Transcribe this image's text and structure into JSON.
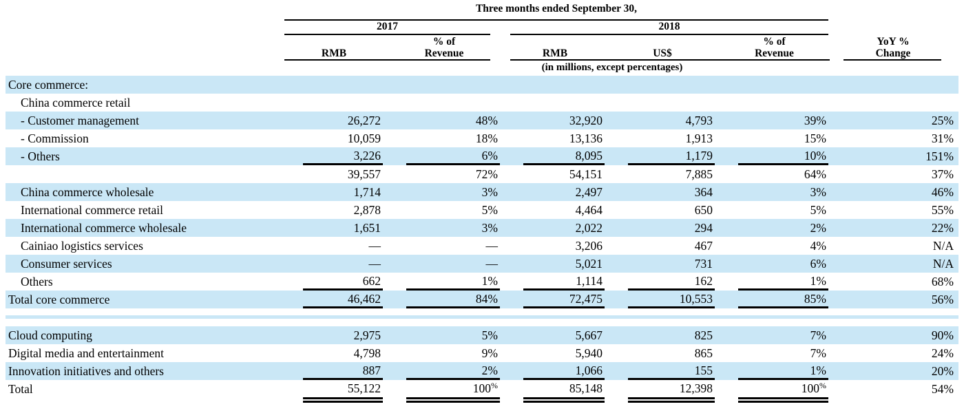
{
  "colors": {
    "row_highlight": "#cae7f6",
    "text": "#000000",
    "rule": "#000000"
  },
  "header": {
    "period_title": "Three months ended September 30,",
    "years": [
      {
        "label": "2017"
      },
      {
        "label": "2018"
      }
    ],
    "columns": [
      {
        "label": "RMB"
      },
      {
        "label": "% of\nRevenue"
      },
      {
        "label": "RMB"
      },
      {
        "label": "US$"
      },
      {
        "label": "% of\nRevenue"
      },
      {
        "label": "YoY %\nChange"
      }
    ],
    "unit_note": "(in millions, except percentages)"
  },
  "rows": [
    {
      "label": "Core commerce:",
      "indent": 0,
      "shaded": true,
      "cells": null
    },
    {
      "label": "China commerce retail",
      "indent": 1,
      "shaded": false,
      "cells": null
    },
    {
      "label": "- Customer management",
      "indent": 1,
      "shaded": true,
      "cells": [
        "26,272",
        "48%",
        "32,920",
        "4,793",
        "39%",
        "25%"
      ]
    },
    {
      "label": "- Commission",
      "indent": 1,
      "shaded": false,
      "cells": [
        "10,059",
        "18%",
        "13,136",
        "1,913",
        "15%",
        "31%"
      ]
    },
    {
      "label": "- Others",
      "indent": 1,
      "shaded": true,
      "cells": [
        "3,226",
        "6%",
        "8,095",
        "1,179",
        "10%",
        "151%"
      ],
      "rule_below": "single"
    },
    {
      "label": "",
      "indent": 1,
      "shaded": false,
      "cells": [
        "39,557",
        "72%",
        "54,151",
        "7,885",
        "64%",
        "37%"
      ]
    },
    {
      "label": "China commerce wholesale",
      "indent": 1,
      "shaded": true,
      "cells": [
        "1,714",
        "3%",
        "2,497",
        "364",
        "3%",
        "46%"
      ]
    },
    {
      "label": "International commerce retail",
      "indent": 1,
      "shaded": false,
      "cells": [
        "2,878",
        "5%",
        "4,464",
        "650",
        "5%",
        "55%"
      ]
    },
    {
      "label": "International commerce wholesale",
      "indent": 1,
      "shaded": true,
      "cells": [
        "1,651",
        "3%",
        "2,022",
        "294",
        "2%",
        "22%"
      ]
    },
    {
      "label": "Cainiao logistics services",
      "indent": 1,
      "shaded": false,
      "cells": [
        "—",
        "—",
        "3,206",
        "467",
        "4%",
        "N/A"
      ]
    },
    {
      "label": "Consumer services",
      "indent": 1,
      "shaded": true,
      "cells": [
        "—",
        "—",
        "5,021",
        "731",
        "6%",
        "N/A"
      ]
    },
    {
      "label": "Others",
      "indent": 1,
      "shaded": false,
      "cells": [
        "662",
        "1%",
        "1,114",
        "162",
        "1%",
        "68%"
      ],
      "rule_below": "single"
    },
    {
      "label": "Total core commerce",
      "indent": 0,
      "shaded": true,
      "cells": [
        "46,462",
        "84%",
        "72,475",
        "10,553",
        "85%",
        "56%"
      ],
      "rule_below": "single"
    },
    {
      "type": "spacer"
    },
    {
      "label": "Cloud computing",
      "indent": 0,
      "shaded": true,
      "cells": [
        "2,975",
        "5%",
        "5,667",
        "825",
        "7%",
        "90%"
      ]
    },
    {
      "label": "Digital media and entertainment",
      "indent": 0,
      "shaded": false,
      "cells": [
        "4,798",
        "9%",
        "5,940",
        "865",
        "7%",
        "24%"
      ]
    },
    {
      "label": "Innovation initiatives and others",
      "indent": 0,
      "shaded": true,
      "cells": [
        "887",
        "2%",
        "1,066",
        "155",
        "1%",
        "20%"
      ],
      "rule_below": "single"
    },
    {
      "label": "Total",
      "indent": 0,
      "shaded": false,
      "cells": [
        "55,122",
        "100%",
        "85,148",
        "12,398",
        "100%",
        "54%"
      ],
      "rule_below": "double",
      "sup_pct": true
    }
  ]
}
